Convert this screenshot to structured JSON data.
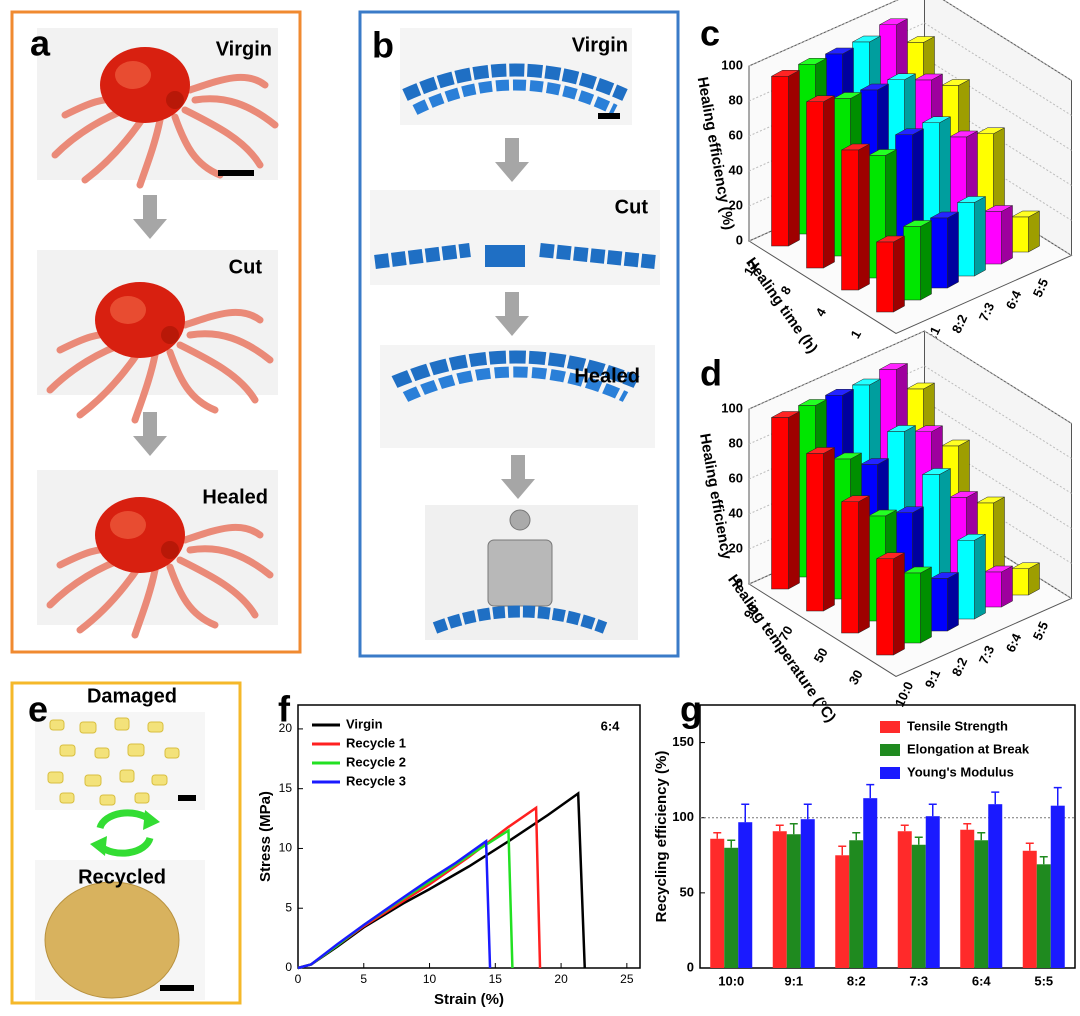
{
  "panels": {
    "a": {
      "label": "a",
      "states": [
        "Virgin",
        "Cut",
        "Healed"
      ]
    },
    "b": {
      "label": "b",
      "states": [
        "Virgin",
        "Cut",
        "Healed"
      ]
    },
    "e": {
      "label": "e",
      "states": [
        "Damaged",
        "Recycled"
      ]
    }
  },
  "chart_data": [
    {
      "type": "bar3d",
      "label": "c",
      "zlabel": "Healing efficiency (%)",
      "ylabel": "Healing time (h)",
      "categories": [
        "10:0",
        "9:1",
        "8:2",
        "7:3",
        "6:4",
        "5:5"
      ],
      "colors": [
        "#ff0000",
        "#00e600",
        "#0000ff",
        "#00ffff",
        "#ff00ff",
        "#ffff00"
      ],
      "series": [
        {
          "name": "12",
          "values": [
            97,
            97,
            96,
            96,
            99,
            82
          ]
        },
        {
          "name": "8",
          "values": [
            95,
            90,
            88,
            87,
            80,
            70
          ]
        },
        {
          "name": "4",
          "values": [
            80,
            70,
            75,
            75,
            60,
            55
          ]
        },
        {
          "name": "1",
          "values": [
            40,
            42,
            40,
            42,
            30,
            20
          ]
        }
      ],
      "zlim": [
        0,
        100
      ],
      "zticks": [
        0,
        20,
        40,
        60,
        80,
        100
      ]
    },
    {
      "type": "bar3d",
      "label": "d",
      "zlabel": "Healing efficiency",
      "ylabel": "Healing temperature (°C)",
      "categories": [
        "10:0",
        "9:1",
        "8:2",
        "7:3",
        "6:4",
        "5:5"
      ],
      "colors": [
        "#ff0000",
        "#00e600",
        "#0000ff",
        "#00ffff",
        "#ff00ff",
        "#ffff00"
      ],
      "series": [
        {
          "name": "90",
          "values": [
            98,
            98,
            97,
            96,
            98,
            80
          ]
        },
        {
          "name": "70",
          "values": [
            90,
            80,
            70,
            82,
            75,
            60
          ]
        },
        {
          "name": "50",
          "values": [
            75,
            60,
            55,
            70,
            50,
            40
          ]
        },
        {
          "name": "30",
          "values": [
            55,
            40,
            30,
            45,
            20,
            15
          ]
        }
      ],
      "zlim": [
        0,
        100
      ],
      "zticks": [
        0,
        20,
        40,
        60,
        80,
        100
      ]
    },
    {
      "type": "line",
      "label": "f",
      "xlabel": "Strain (%)",
      "ylabel": "Stress (MPa)",
      "annotation": "6:4",
      "series": [
        {
          "name": "Virgin",
          "color": "#000000",
          "x": [
            0,
            1,
            3,
            5,
            8,
            10,
            13,
            16,
            19,
            21.3,
            21.8
          ],
          "values": [
            0,
            0.3,
            1.8,
            3.4,
            5.4,
            6.6,
            8.5,
            10.6,
            12.8,
            14.6,
            0
          ]
        },
        {
          "name": "Recycle 1",
          "color": "#ff2020",
          "x": [
            0,
            1,
            3,
            5,
            8,
            10,
            13,
            16,
            18.1,
            18.4
          ],
          "values": [
            0,
            0.3,
            1.9,
            3.5,
            5.6,
            7,
            9.3,
            11.8,
            13.4,
            0
          ]
        },
        {
          "name": "Recycle 2",
          "color": "#22e022",
          "x": [
            0,
            1,
            3,
            5,
            8,
            10,
            13,
            16,
            16.3
          ],
          "values": [
            0,
            0.3,
            1.9,
            3.6,
            5.8,
            7.2,
            9.4,
            11.5,
            0
          ]
        },
        {
          "name": "Recycle 3",
          "color": "#1a1aff",
          "x": [
            0,
            1,
            3,
            5,
            8,
            10,
            12,
            14.3,
            14.6
          ],
          "values": [
            0,
            0.3,
            2,
            3.6,
            5.9,
            7.4,
            8.8,
            10.6,
            0
          ]
        }
      ],
      "xlim": [
        0,
        26
      ],
      "xticks": [
        0,
        5,
        10,
        15,
        20,
        25
      ],
      "ylim": [
        0,
        22
      ],
      "yticks": [
        0,
        5,
        10,
        15,
        20
      ],
      "legend": "upper left"
    },
    {
      "type": "bar",
      "label": "g",
      "ylabel": "Recycling efficiency (%)",
      "categories": [
        "10:0",
        "9:1",
        "8:2",
        "7:3",
        "6:4",
        "5:5"
      ],
      "series": [
        {
          "name": "Tensile Strength",
          "color": "#ff2a2a",
          "values": [
            86,
            91,
            75,
            91,
            92,
            78
          ],
          "errors": [
            4,
            4,
            6,
            4,
            4,
            5
          ]
        },
        {
          "name": "Elongation at Break",
          "color": "#1f8a1f",
          "values": [
            80,
            89,
            85,
            82,
            85,
            69
          ],
          "errors": [
            5,
            7,
            5,
            5,
            5,
            5
          ]
        },
        {
          "name": "Young's Modulus",
          "color": "#1a1aff",
          "values": [
            97,
            99,
            113,
            101,
            109,
            108
          ],
          "errors": [
            12,
            10,
            9,
            8,
            8,
            12
          ]
        }
      ],
      "ylim": [
        0,
        175
      ],
      "yticks": [
        0,
        50,
        100,
        150
      ],
      "reference_line": 100,
      "legend": "upper right"
    }
  ]
}
